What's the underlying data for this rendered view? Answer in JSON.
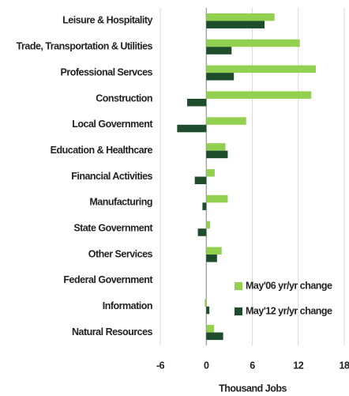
{
  "chart_data": {
    "type": "bar",
    "orientation": "horizontal",
    "categories": [
      "Leisure & Hospitality",
      "Trade, Transportation & Utilities",
      "Professional Servces",
      "Construction",
      "Local Government",
      "Education & Healthcare",
      "Financial Activities",
      "Manufacturing",
      "State Government",
      "Other Services",
      "Federal Government",
      "Information",
      "Natural Resources"
    ],
    "series": [
      {
        "name": "May'06 yr/yr change",
        "color": "#92d050",
        "values": [
          8.9,
          12.2,
          14.3,
          13.7,
          5.2,
          2.5,
          1.1,
          2.8,
          0.5,
          2.0,
          0,
          -0.2,
          1.0
        ]
      },
      {
        "name": "May'12 yr/yr change",
        "color": "#1e4d2b",
        "values": [
          7.6,
          3.3,
          3.6,
          -2.5,
          -3.8,
          2.8,
          -1.5,
          -0.5,
          -1.1,
          1.4,
          0,
          0.4,
          2.2
        ]
      }
    ],
    "x_label": "Thousand Jobs",
    "xlim": [
      -6,
      18
    ],
    "xticks": [
      -6,
      0,
      6,
      12,
      18
    ],
    "grid": true,
    "legend": "right"
  }
}
